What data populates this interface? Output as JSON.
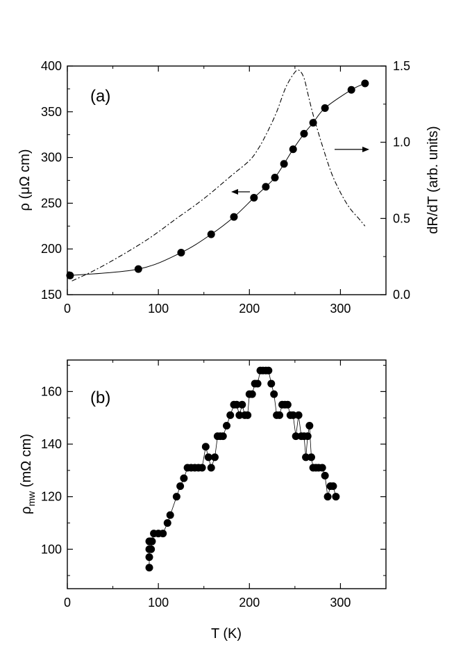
{
  "figure_label_a": "(a)",
  "figure_label_b": "(b)",
  "chart_data": [
    {
      "id": "a",
      "type": "scatter",
      "title": "",
      "label": "(a)",
      "xlabel": "",
      "ylabel": "ρ (μΩ cm)",
      "y2label": "dR/dT (arb. units)",
      "xlim": [
        0,
        350
      ],
      "ylim": [
        150,
        400
      ],
      "y2lim": [
        0.0,
        1.5
      ],
      "xticks": [
        0,
        100,
        200,
        300
      ],
      "xtick_labels": [
        "0",
        "100",
        "200",
        "300"
      ],
      "yticks": [
        150,
        200,
        250,
        300,
        350,
        400
      ],
      "ytick_labels": [
        "150",
        "200",
        "250",
        "300",
        "350",
        "400"
      ],
      "y2ticks": [
        0.0,
        0.5,
        1.0,
        1.5
      ],
      "y2tick_labels": [
        "0.0",
        "0.5",
        "1.0",
        "1.5"
      ],
      "grid": false,
      "series": [
        {
          "name": "resistivity",
          "axis": "left",
          "style": "markers+solid line",
          "x": [
            3,
            78,
            125,
            158,
            183,
            205,
            218,
            228,
            238,
            248,
            260,
            270,
            283,
            312,
            327
          ],
          "y": [
            171,
            178,
            196,
            216,
            235,
            256,
            268,
            278,
            293,
            309,
            326,
            338,
            354,
            374,
            381
          ]
        },
        {
          "name": "dR/dT",
          "axis": "right",
          "style": "dash-dot line",
          "x": [
            5,
            30,
            60,
            90,
            120,
            150,
            180,
            200,
            210,
            220,
            230,
            240,
            250,
            255,
            260,
            265,
            270,
            280,
            290,
            300,
            310,
            320,
            327
          ],
          "y": [
            0.09,
            0.16,
            0.26,
            0.37,
            0.5,
            0.63,
            0.78,
            0.88,
            0.96,
            1.07,
            1.2,
            1.36,
            1.46,
            1.47,
            1.42,
            1.3,
            1.18,
            0.98,
            0.8,
            0.67,
            0.57,
            0.5,
            0.45
          ]
        }
      ],
      "annotations": [
        {
          "type": "arrow",
          "direction": "left",
          "meaning": "resistivity curve reads on left axis"
        },
        {
          "type": "arrow",
          "direction": "right",
          "meaning": "dR/dT curve reads on right axis"
        }
      ]
    },
    {
      "id": "b",
      "type": "scatter",
      "title": "",
      "label": "(b)",
      "xlabel": "T (K)",
      "ylabel": "ρ",
      "ylabel_sub": "mw",
      "ylabel_unit": "(mΩ cm)",
      "xlim": [
        0,
        350
      ],
      "ylim": [
        85,
        172
      ],
      "xticks": [
        0,
        100,
        200,
        300
      ],
      "xtick_labels": [
        "0",
        "100",
        "200",
        "300"
      ],
      "yticks": [
        100,
        120,
        140,
        160
      ],
      "ytick_labels": [
        "100",
        "120",
        "140",
        "160"
      ],
      "grid": false,
      "series": [
        {
          "name": "microwave resistivity",
          "style": "markers+thin line",
          "x": [
            90,
            90,
            90,
            90,
            91,
            92,
            93,
            95,
            100,
            105,
            110,
            113,
            120,
            124,
            128,
            132,
            136,
            140,
            144,
            148,
            152,
            155,
            158,
            162,
            165,
            168,
            171,
            175,
            179,
            183,
            186,
            189,
            192,
            195,
            198,
            200,
            203,
            206,
            209,
            212,
            215,
            218,
            221,
            224,
            227,
            230,
            233,
            236,
            239,
            242,
            245,
            248,
            251,
            254,
            257,
            260,
            262,
            264,
            266,
            268,
            270,
            273,
            276,
            280,
            283,
            286,
            289,
            292,
            295
          ],
          "y": [
            93,
            97,
            100,
            103,
            103,
            100,
            103,
            106,
            106,
            106,
            110,
            113,
            120,
            124,
            127,
            131,
            131,
            131,
            131,
            131,
            139,
            135,
            131,
            135,
            143,
            143,
            143,
            147,
            151,
            155,
            155,
            151,
            155,
            151,
            151,
            159,
            159,
            163,
            163,
            168,
            168,
            168,
            168,
            163,
            159,
            151,
            151,
            155,
            155,
            155,
            151,
            151,
            143,
            151,
            143,
            143,
            135,
            143,
            147,
            135,
            131,
            131,
            131,
            131,
            128,
            120,
            124,
            124,
            120
          ]
        }
      ]
    }
  ]
}
